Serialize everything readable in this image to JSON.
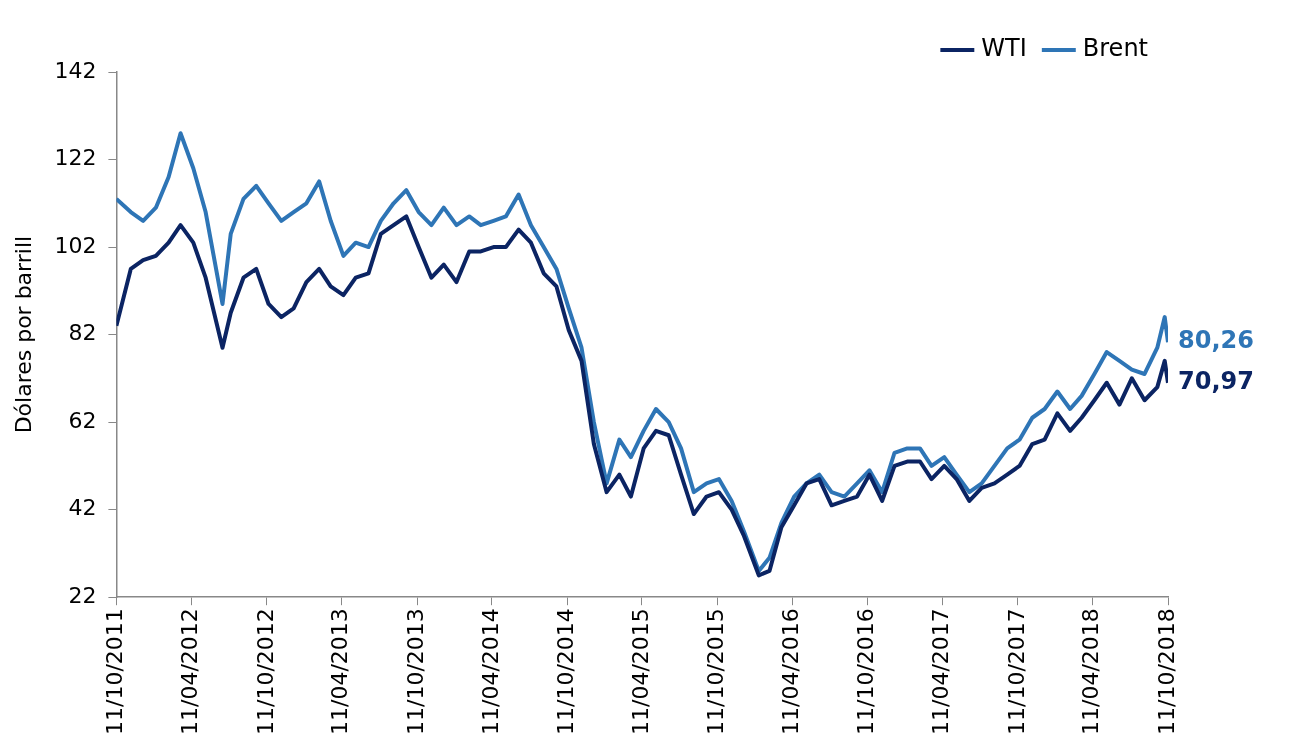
{
  "chart_data": {
    "type": "line",
    "ylabel": "Dólares por barrill",
    "legend": "top right",
    "grid": false,
    "marker": "none",
    "line_style": "solid",
    "ylim": [
      22,
      142
    ],
    "yticks": [
      22,
      42,
      62,
      82,
      102,
      122,
      142
    ],
    "xlim": [
      "2011-10-11",
      "2018-10-11"
    ],
    "xticks": [
      {
        "value": "2011-10-11",
        "label": "11/10/2011"
      },
      {
        "value": "2012-04-11",
        "label": "11/04/2012"
      },
      {
        "value": "2012-10-11",
        "label": "11/10/2012"
      },
      {
        "value": "2013-04-11",
        "label": "11/04/2013"
      },
      {
        "value": "2013-10-11",
        "label": "11/10/2013"
      },
      {
        "value": "2014-04-11",
        "label": "11/04/2014"
      },
      {
        "value": "2014-10-11",
        "label": "11/10/2014"
      },
      {
        "value": "2015-04-11",
        "label": "11/04/2015"
      },
      {
        "value": "2015-10-11",
        "label": "11/10/2015"
      },
      {
        "value": "2016-04-11",
        "label": "11/04/2016"
      },
      {
        "value": "2016-10-11",
        "label": "11/10/2016"
      },
      {
        "value": "2017-04-11",
        "label": "11/04/2017"
      },
      {
        "value": "2017-10-11",
        "label": "11/10/2017"
      },
      {
        "value": "2018-04-11",
        "label": "11/04/2018"
      },
      {
        "value": "2018-10-11",
        "label": "11/10/2018"
      }
    ],
    "x": [
      "2011-10-11",
      "2011-11-15",
      "2011-12-15",
      "2012-01-15",
      "2012-02-15",
      "2012-03-15",
      "2012-04-15",
      "2012-05-15",
      "2012-06-25",
      "2012-07-15",
      "2012-08-15",
      "2012-09-15",
      "2012-10-15",
      "2012-11-15",
      "2012-12-15",
      "2013-01-15",
      "2013-02-15",
      "2013-03-15",
      "2013-04-15",
      "2013-05-15",
      "2013-06-15",
      "2013-07-15",
      "2013-08-15",
      "2013-09-15",
      "2013-10-15",
      "2013-11-15",
      "2013-12-15",
      "2014-01-15",
      "2014-02-15",
      "2014-03-15",
      "2014-04-15",
      "2014-05-15",
      "2014-06-15",
      "2014-07-15",
      "2014-08-15",
      "2014-09-15",
      "2014-10-15",
      "2014-11-15",
      "2014-12-15",
      "2015-01-15",
      "2015-02-15",
      "2015-03-15",
      "2015-04-15",
      "2015-05-15",
      "2015-06-15",
      "2015-07-15",
      "2015-08-15",
      "2015-09-15",
      "2015-10-15",
      "2015-11-15",
      "2015-12-15",
      "2016-01-20",
      "2016-02-15",
      "2016-03-15",
      "2016-04-15",
      "2016-05-15",
      "2016-06-15",
      "2016-07-15",
      "2016-08-15",
      "2016-09-15",
      "2016-10-15",
      "2016-11-15",
      "2016-12-15",
      "2017-01-15",
      "2017-02-15",
      "2017-03-15",
      "2017-04-15",
      "2017-05-15",
      "2017-06-15",
      "2017-07-15",
      "2017-08-15",
      "2017-09-15",
      "2017-10-15",
      "2017-11-15",
      "2017-12-15",
      "2018-01-15",
      "2018-02-15",
      "2018-03-15",
      "2018-04-15",
      "2018-05-15",
      "2018-06-15",
      "2018-07-15",
      "2018-08-15",
      "2018-09-15",
      "2018-10-03",
      "2018-10-11"
    ],
    "series": [
      {
        "name": "WTI",
        "color": "#0b2463",
        "values": [
          84,
          97,
          99,
          100,
          103,
          107,
          103,
          95,
          79,
          87,
          95,
          97,
          89,
          86,
          88,
          94,
          97,
          93,
          91,
          95,
          96,
          105,
          107,
          109,
          102,
          95,
          98,
          94,
          101,
          101,
          102,
          102,
          106,
          103,
          96,
          93,
          83,
          76,
          57,
          46,
          50,
          45,
          56,
          60,
          59,
          50,
          41,
          45,
          46,
          42,
          36,
          27,
          28,
          38,
          43,
          48,
          49,
          43,
          44,
          45,
          50,
          44,
          52,
          53,
          53,
          49,
          52,
          49,
          44,
          47,
          48,
          50,
          52,
          57,
          58,
          64,
          60,
          63,
          67,
          71,
          66,
          72,
          67,
          70,
          76,
          70.97
        ],
        "value_labels": [
          null,
          null,
          null,
          null,
          null,
          null,
          null,
          null,
          null,
          null,
          null,
          null,
          null,
          null,
          null,
          null,
          null,
          null,
          null,
          null,
          null,
          null,
          null,
          null,
          null,
          null,
          null,
          null,
          null,
          null,
          null,
          null,
          null,
          null,
          null,
          null,
          null,
          null,
          null,
          null,
          null,
          null,
          null,
          null,
          null,
          null,
          null,
          null,
          null,
          null,
          null,
          null,
          null,
          null,
          null,
          null,
          null,
          null,
          null,
          null,
          null,
          null,
          null,
          null,
          null,
          null,
          null,
          null,
          null,
          null,
          null,
          null,
          null,
          null,
          null,
          null,
          null,
          null,
          null,
          null,
          null,
          null,
          null,
          null,
          null,
          "70,97"
        ]
      },
      {
        "name": "Brent",
        "color": "#2e75b6",
        "values": [
          113,
          110,
          108,
          111,
          118,
          128,
          120,
          110,
          89,
          105,
          113,
          116,
          112,
          108,
          110,
          112,
          117,
          108,
          100,
          103,
          102,
          108,
          112,
          115,
          110,
          107,
          111,
          107,
          109,
          107,
          108,
          109,
          114,
          107,
          102,
          97,
          88,
          79,
          62,
          48,
          58,
          54,
          60,
          65,
          62,
          56,
          46,
          48,
          49,
          44,
          37,
          28,
          31,
          39,
          45,
          48,
          50,
          46,
          45,
          48,
          51,
          46,
          55,
          56,
          56,
          52,
          54,
          50,
          46,
          48,
          52,
          56,
          58,
          63,
          65,
          69,
          65,
          68,
          73,
          78,
          76,
          74,
          73,
          79,
          86,
          80.26
        ],
        "value_labels": [
          null,
          null,
          null,
          null,
          null,
          null,
          null,
          null,
          null,
          null,
          null,
          null,
          null,
          null,
          null,
          null,
          null,
          null,
          null,
          null,
          null,
          null,
          null,
          null,
          null,
          null,
          null,
          null,
          null,
          null,
          null,
          null,
          null,
          null,
          null,
          null,
          null,
          null,
          null,
          null,
          null,
          null,
          null,
          null,
          null,
          null,
          null,
          null,
          null,
          null,
          null,
          null,
          null,
          null,
          null,
          null,
          null,
          null,
          null,
          null,
          null,
          null,
          null,
          null,
          null,
          null,
          null,
          null,
          null,
          null,
          null,
          null,
          null,
          null,
          null,
          null,
          null,
          null,
          null,
          null,
          null,
          null,
          null,
          null,
          null,
          "80,26"
        ]
      }
    ]
  }
}
